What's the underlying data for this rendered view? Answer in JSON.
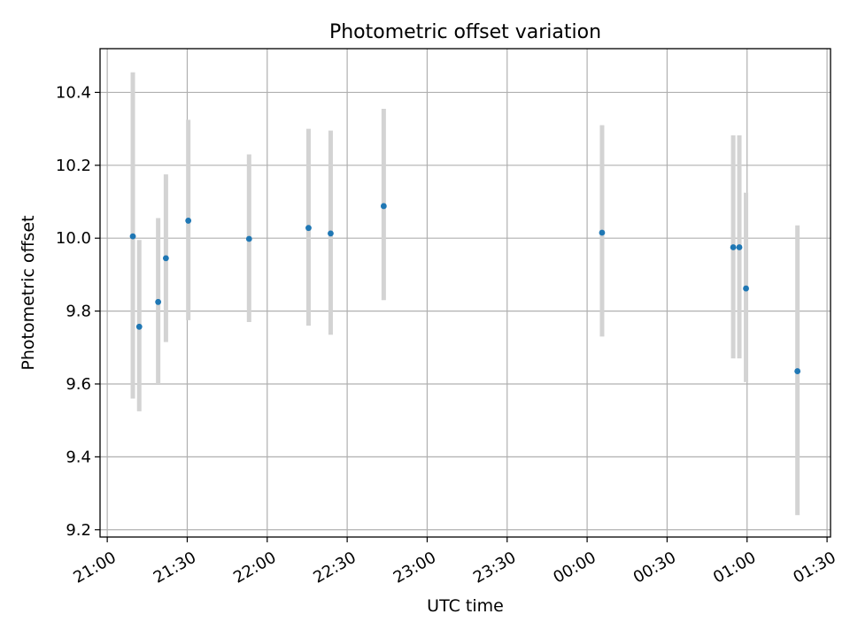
{
  "chart_data": {
    "type": "scatter",
    "title": "Photometric offset variation",
    "xlabel": "UTC time",
    "ylabel": "Photometric offset",
    "x_ticks": [
      {
        "label": "21:00",
        "minutes": 0
      },
      {
        "label": "21:30",
        "minutes": 30
      },
      {
        "label": "22:00",
        "minutes": 60
      },
      {
        "label": "22:30",
        "minutes": 90
      },
      {
        "label": "23:00",
        "minutes": 120
      },
      {
        "label": "23:30",
        "minutes": 150
      },
      {
        "label": "00:00",
        "minutes": 180
      },
      {
        "label": "00:30",
        "minutes": 210
      },
      {
        "label": "01:00",
        "minutes": 240
      },
      {
        "label": "01:30",
        "minutes": 270
      }
    ],
    "y_ticks": [
      {
        "label": "9.2",
        "value": 9.2
      },
      {
        "label": "9.4",
        "value": 9.4
      },
      {
        "label": "9.6",
        "value": 9.6
      },
      {
        "label": "9.8",
        "value": 9.8
      },
      {
        "label": "10.0",
        "value": 10.0
      },
      {
        "label": "10.2",
        "value": 10.2
      },
      {
        "label": "10.4",
        "value": 10.4
      }
    ],
    "xlim_minutes": [
      -2.7,
      271.3
    ],
    "ylim": [
      9.18,
      10.52
    ],
    "grid": true,
    "point_color": "#1f77b4",
    "errorbar_color": "#d3d3d3",
    "points": [
      {
        "time": "21:09.6",
        "minutes": 9.6,
        "y": 10.005,
        "err_low": 9.56,
        "err_high": 10.455
      },
      {
        "time": "21:12.0",
        "minutes": 12.0,
        "y": 9.757,
        "err_low": 9.525,
        "err_high": 9.995
      },
      {
        "time": "21:19.1",
        "minutes": 19.1,
        "y": 9.825,
        "err_low": 9.6,
        "err_high": 10.055
      },
      {
        "time": "21:22.0",
        "minutes": 22.0,
        "y": 9.945,
        "err_low": 9.715,
        "err_high": 10.175
      },
      {
        "time": "21:30.4",
        "minutes": 30.4,
        "y": 10.048,
        "err_low": 9.775,
        "err_high": 10.325
      },
      {
        "time": "21:53.2",
        "minutes": 53.2,
        "y": 9.998,
        "err_low": 9.77,
        "err_high": 10.23
      },
      {
        "time": "22:15.5",
        "minutes": 75.5,
        "y": 10.028,
        "err_low": 9.76,
        "err_high": 10.3
      },
      {
        "time": "22:23.8",
        "minutes": 83.8,
        "y": 10.013,
        "err_low": 9.735,
        "err_high": 10.295
      },
      {
        "time": "22:43.7",
        "minutes": 103.7,
        "y": 10.088,
        "err_low": 9.83,
        "err_high": 10.355
      },
      {
        "time": "00:05.6",
        "minutes": 185.6,
        "y": 10.015,
        "err_low": 9.73,
        "err_high": 10.31
      },
      {
        "time": "00:54.8",
        "minutes": 234.8,
        "y": 9.975,
        "err_low": 9.67,
        "err_high": 10.282
      },
      {
        "time": "00:57.1",
        "minutes": 237.1,
        "y": 9.975,
        "err_low": 9.67,
        "err_high": 10.282
      },
      {
        "time": "00:59.6",
        "minutes": 239.6,
        "y": 9.862,
        "err_low": 9.605,
        "err_high": 10.125
      },
      {
        "time": "01:18.9",
        "minutes": 258.9,
        "y": 9.635,
        "err_low": 9.24,
        "err_high": 10.035
      }
    ]
  }
}
